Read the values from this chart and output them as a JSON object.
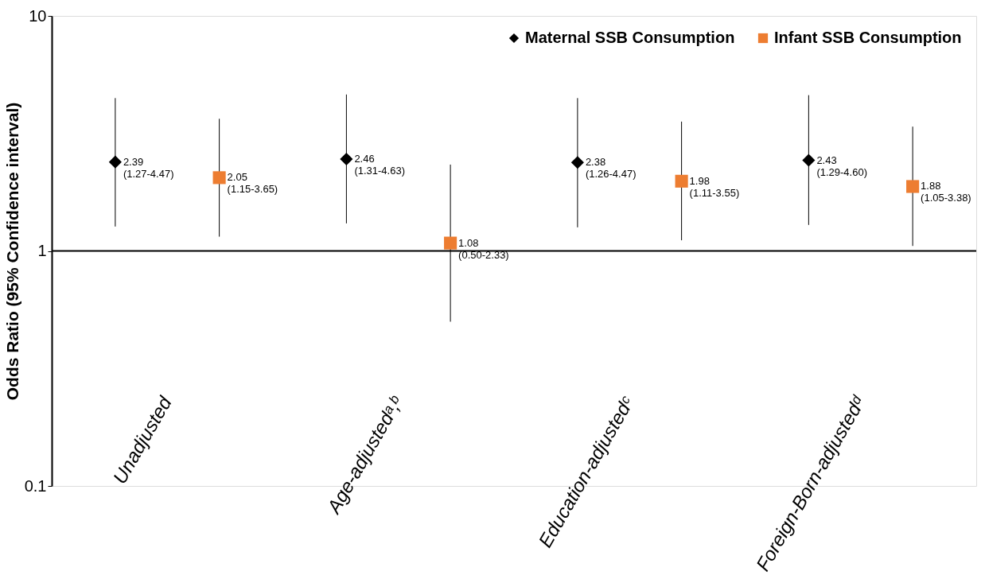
{
  "chart_data": {
    "type": "scatter",
    "ylabel": "Odds Ratio (95% Confidence interval)",
    "categories": [
      "Unadjusted",
      "Age-adjustedᵃ,ᵇ",
      "Education-adjustedᶜ",
      "Foreign-Born-adjustedᵈ"
    ],
    "log": true,
    "ylim": [
      0.1,
      10
    ],
    "yticks": [
      0.1,
      1,
      10
    ],
    "grid": false,
    "legend": "top right",
    "ref_lines": [
      {
        "axis": "y",
        "value": 1,
        "color": "#000000"
      }
    ],
    "series": [
      {
        "name": "Maternal SSB Consumption",
        "color": "#000000",
        "marker": "diamond",
        "values": [
          2.39,
          2.46,
          2.38,
          2.43
        ],
        "errors": [
          [
            1.27,
            4.47
          ],
          [
            1.31,
            4.63
          ],
          [
            1.26,
            4.47
          ],
          [
            1.29,
            4.6
          ]
        ],
        "value_labels": [
          "2.39\n(1.27-4.47)",
          "2.46\n(1.31-4.63)",
          "2.38\n(1.26-4.47)",
          "2.43\n(1.29-4.60)"
        ]
      },
      {
        "name": "Infant SSB Consumption",
        "color": "#ed7d31",
        "marker": "square",
        "values": [
          2.05,
          1.08,
          1.98,
          1.88
        ],
        "errors": [
          [
            1.15,
            3.65
          ],
          [
            0.5,
            2.33
          ],
          [
            1.11,
            3.55
          ],
          [
            1.05,
            3.38
          ]
        ],
        "value_labels": [
          "2.05\n(1.15-3.65)",
          "1.08\n(0.50-2.33)",
          "1.98\n(1.11-3.55)",
          "1.88\n(1.05-3.38)"
        ]
      }
    ]
  }
}
